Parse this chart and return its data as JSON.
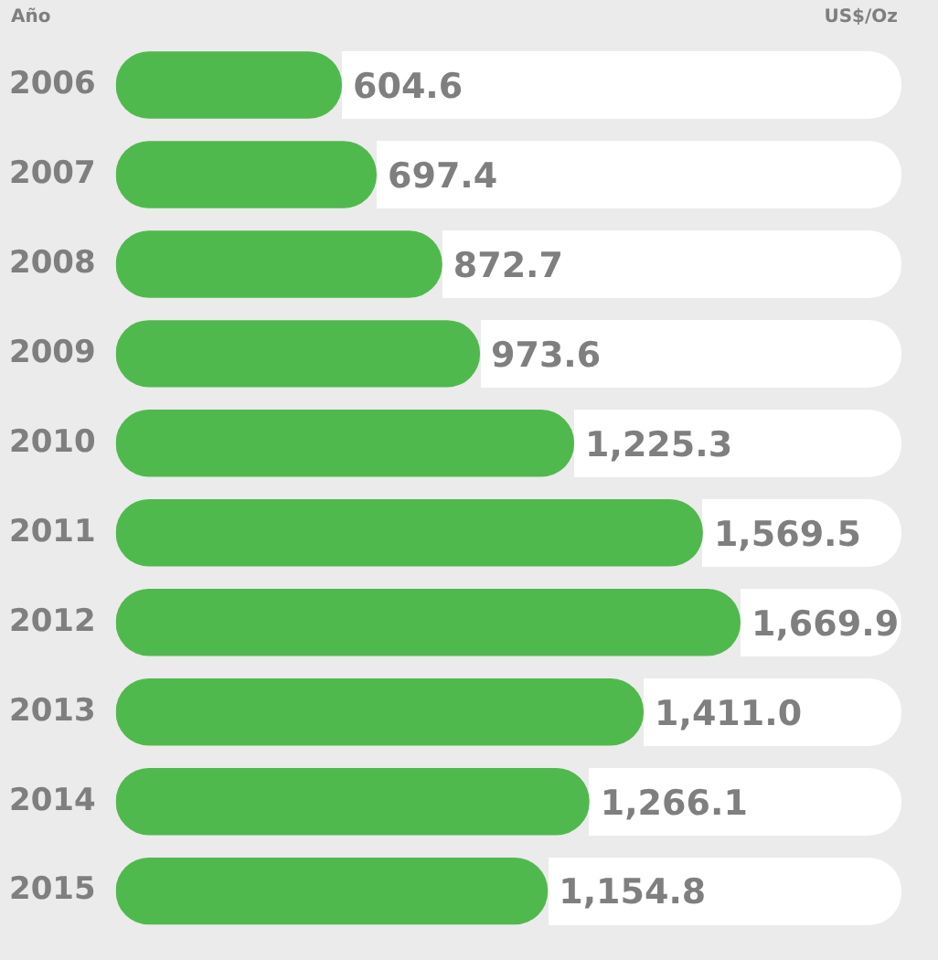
{
  "chart_data": {
    "type": "bar",
    "orientation": "horizontal",
    "ylabel": "Año",
    "xlabel": "US$/Oz",
    "categories": [
      "2006",
      "2007",
      "2008",
      "2009",
      "2010",
      "2011",
      "2012",
      "2013",
      "2014",
      "2015"
    ],
    "values": [
      604.6,
      697.4,
      872.7,
      973.6,
      1225.3,
      1569.5,
      1669.9,
      1411.0,
      1266.1,
      1154.8
    ],
    "value_labels": [
      "604.6",
      "697.4",
      "872.7",
      "973.6",
      "1,225.3",
      "1,569.5",
      "1,669.9",
      "1,411.0",
      "1,266.1",
      "1,154.8"
    ],
    "color": "#50b94e",
    "xlim": [
      0,
      2100
    ],
    "tick_labels": "y"
  }
}
